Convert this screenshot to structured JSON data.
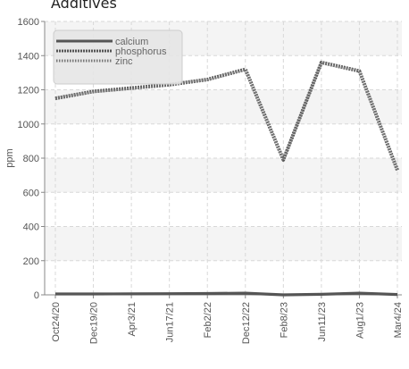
{
  "chart_data": {
    "type": "line",
    "title": "Additives",
    "ylabel": "ppm",
    "xlabel": "",
    "ylim": [
      0,
      1600
    ],
    "yticks": [
      0,
      200,
      400,
      600,
      800,
      1000,
      1200,
      1400,
      1600
    ],
    "grid": true,
    "legend_position": "top-left",
    "categories": [
      "Oct24/20",
      "Dec19/20",
      "Apr3/21",
      "Jun17/21",
      "Feb2/22",
      "Dec12/22",
      "Feb8/23",
      "Jun11/23",
      "Aug1/23",
      "Mar4/24"
    ],
    "series": [
      {
        "name": "calcium",
        "style": "solid",
        "color": "#555555",
        "values": [
          5,
          5,
          6,
          7,
          8,
          10,
          0,
          3,
          10,
          2
        ]
      },
      {
        "name": "phosphorus",
        "style": "dense-dashed",
        "color": "#555555",
        "values": [
          1150,
          1190,
          1210,
          1230,
          1260,
          1320,
          790,
          1360,
          1310,
          730
        ]
      },
      {
        "name": "zinc",
        "style": "dotted",
        "color": "#777777",
        "values": [
          1148,
          1188,
          1208,
          1228,
          1258,
          1318,
          788,
          1358,
          1308,
          728
        ]
      }
    ]
  }
}
